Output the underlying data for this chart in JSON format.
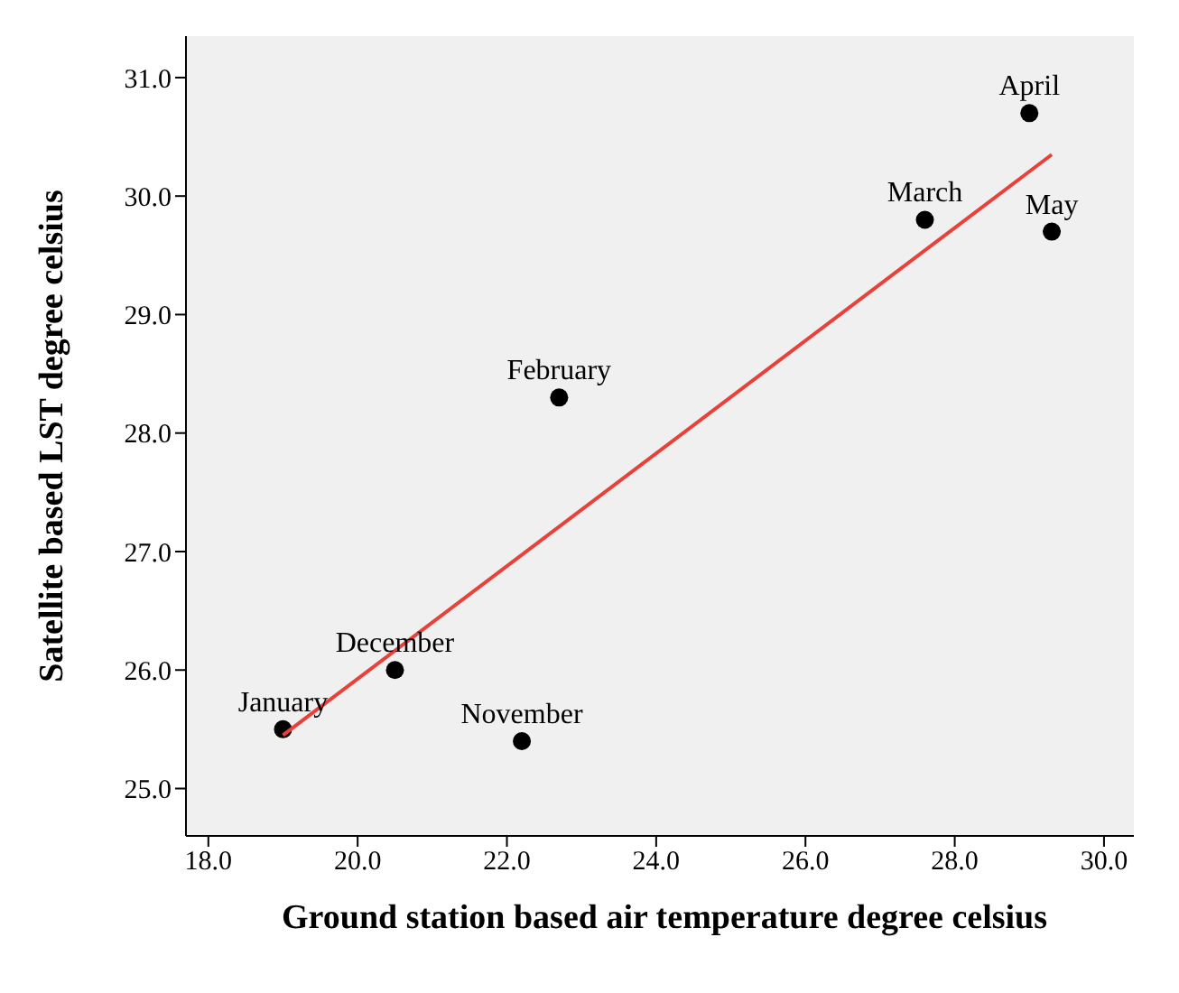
{
  "chart_data": {
    "type": "scatter",
    "xlabel": "Ground station based air temperature degree celsius",
    "ylabel": "Satellite based LST degree celsius",
    "xlim": [
      17.7,
      30.4
    ],
    "ylim": [
      24.6,
      31.35
    ],
    "xticks": [
      {
        "value": 18,
        "label": "18.0"
      },
      {
        "value": 20,
        "label": "20.0"
      },
      {
        "value": 22,
        "label": "22.0"
      },
      {
        "value": 24,
        "label": "24.0"
      },
      {
        "value": 26,
        "label": "26.0"
      },
      {
        "value": 28,
        "label": "28.0"
      },
      {
        "value": 30,
        "label": "30.0"
      }
    ],
    "yticks": [
      {
        "value": 25,
        "label": "25.0"
      },
      {
        "value": 26,
        "label": "26.0"
      },
      {
        "value": 27,
        "label": "27.0"
      },
      {
        "value": 28,
        "label": "28.0"
      },
      {
        "value": 29,
        "label": "29.0"
      },
      {
        "value": 30,
        "label": "30.0"
      },
      {
        "value": 31,
        "label": "31.0"
      }
    ],
    "grid": false,
    "series": [
      {
        "color": "#000000",
        "marker": "circle",
        "x": [
          19.0,
          20.5,
          22.2,
          22.7,
          27.6,
          29.0,
          29.3
        ],
        "values": [
          25.5,
          26.0,
          25.4,
          28.3,
          29.8,
          30.7,
          29.7
        ]
      },
      {
        "type": "line",
        "color": "#e8413a",
        "x": [
          19.0,
          29.3
        ],
        "values": [
          25.45,
          30.35
        ]
      }
    ],
    "annotations": [
      {
        "text": "January",
        "x": 19.0,
        "y": 25.5
      },
      {
        "text": "December",
        "x": 20.5,
        "y": 26.0
      },
      {
        "text": "November",
        "x": 22.2,
        "y": 25.4
      },
      {
        "text": "February",
        "x": 22.7,
        "y": 28.3
      },
      {
        "text": "March",
        "x": 27.6,
        "y": 29.8
      },
      {
        "text": "April",
        "x": 29.0,
        "y": 30.7
      },
      {
        "text": "May",
        "x": 29.3,
        "y": 29.7
      }
    ]
  }
}
